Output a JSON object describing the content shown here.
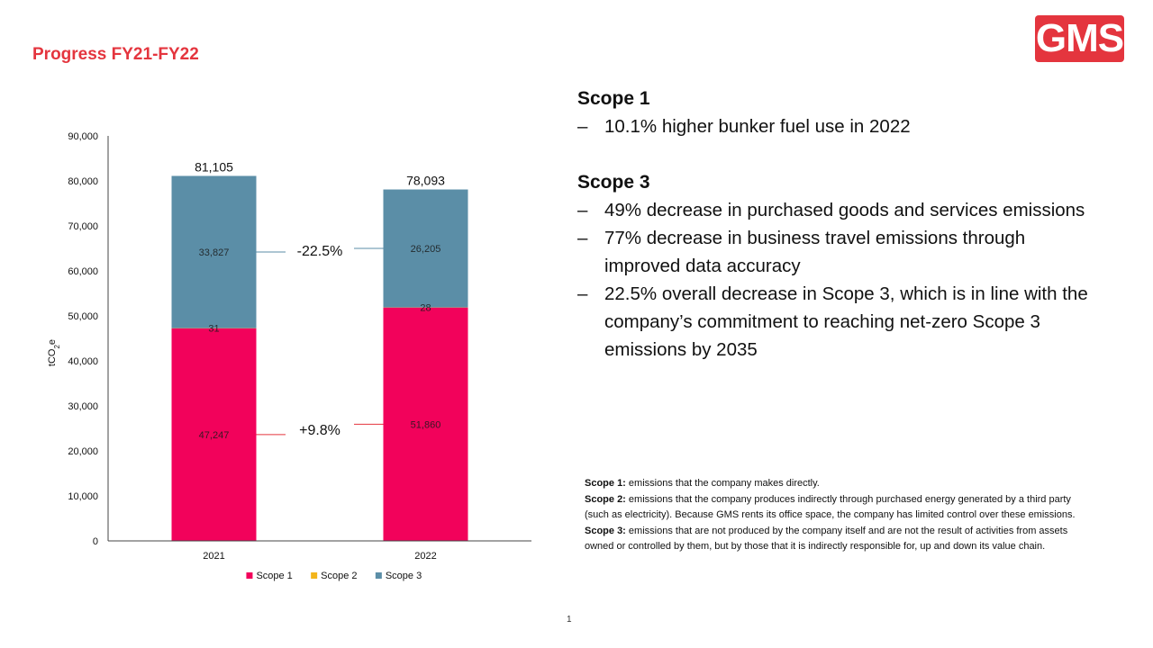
{
  "slide": {
    "title": "Progress FY21-FY22",
    "logo_text": "GMS",
    "page_number": "1",
    "brand_color": "#e4353e"
  },
  "bullets": [
    {
      "heading": "Scope 1",
      "items": [
        "10.1% higher bunker fuel use in 2022"
      ]
    },
    {
      "heading": "Scope 3",
      "items": [
        "49% decrease in purchased goods and services emissions",
        "77% decrease in business travel emissions through improved data accuracy",
        "22.5% overall decrease in Scope 3, which is in line with the company’s commitment to reaching net-zero Scope 3 emissions by 2035"
      ]
    }
  ],
  "bullet_marker": "–",
  "notes": [
    {
      "label": "Scope 1:",
      "text": "emissions that the company makes directly."
    },
    {
      "label": "Scope 2:",
      "text": "emissions that the company produces indirectly through purchased energy generated by a third party (such as electricity). Because GMS rents its office space, the company has limited control over these emissions."
    },
    {
      "label": "Scope 3:",
      "text": "emissions that are not produced by the company itself and are not the result of activities from assets owned or controlled by them, but by those that it is indirectly responsible for, up and down its value chain."
    }
  ],
  "chart_data": {
    "type": "bar",
    "stacked": true,
    "categories": [
      "2021",
      "2022"
    ],
    "series": [
      {
        "name": "Scope 1",
        "values": [
          47247,
          51860
        ],
        "labels": [
          "47,247",
          "51,860"
        ],
        "color": "#f2025b"
      },
      {
        "name": "Scope 2",
        "values": [
          31,
          28
        ],
        "labels": [
          "31",
          "28"
        ],
        "color": "#f3b51b"
      },
      {
        "name": "Scope 3",
        "values": [
          33827,
          26205
        ],
        "labels": [
          "33,827",
          "26,205"
        ],
        "color": "#5b8ea7"
      }
    ],
    "totals": [
      "81,105",
      "78,093"
    ],
    "ylabel": "tCO2e",
    "ylim": [
      0,
      90000
    ],
    "yticks": [
      0,
      10000,
      20000,
      30000,
      40000,
      50000,
      60000,
      70000,
      80000,
      90000
    ],
    "ytick_labels": [
      "0",
      "10,000",
      "20,000",
      "30,000",
      "40,000",
      "50,000",
      "60,000",
      "70,000",
      "80,000",
      "90,000"
    ],
    "grid": false,
    "legend_position": "bottom",
    "annotations": [
      {
        "text": "-22.5%",
        "series": "Scope 3",
        "color": "#5b8ea7"
      },
      {
        "text": "+9.8%",
        "series": "Scope 1",
        "color": "#e4353e"
      }
    ]
  }
}
